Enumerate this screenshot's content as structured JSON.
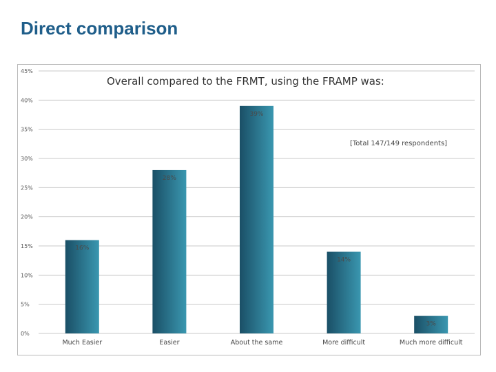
{
  "slide": {
    "title": "Direct comparison"
  },
  "colors": {
    "title": "#1f5e8a",
    "bar_dark": "#1a4f66",
    "bar_light": "#3a97b0",
    "grid": "#c8c8c8"
  },
  "chart_data": {
    "type": "bar",
    "title": "Overall compared to the FRMT, using the FRAMP was:",
    "annotation": "[Total 147/149 respondents]",
    "categories": [
      "Much Easier",
      "Easier",
      "About the same",
      "More difficult",
      "Much more difficult"
    ],
    "values": [
      16,
      28,
      39,
      14,
      3
    ],
    "data_labels": [
      "16%",
      "28%",
      "39%",
      "14%",
      "3%"
    ],
    "y_ticks": [
      0,
      5,
      10,
      15,
      20,
      25,
      30,
      35,
      40,
      45
    ],
    "y_tick_labels": [
      "0%",
      "5%",
      "10%",
      "15%",
      "20%",
      "25%",
      "30%",
      "35%",
      "40%",
      "45%"
    ],
    "ylim": [
      0,
      45
    ],
    "xlabel": "",
    "ylabel": "",
    "grid": true,
    "legend": "none"
  }
}
